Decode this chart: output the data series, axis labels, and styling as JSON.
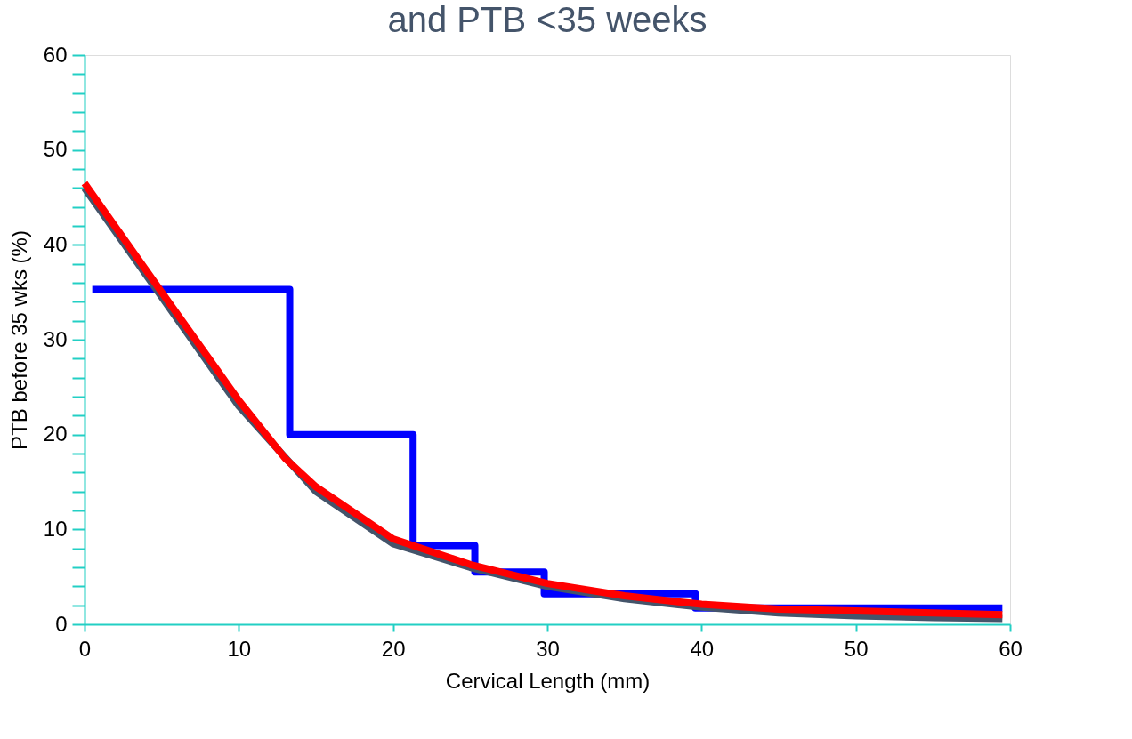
{
  "chart_data": {
    "type": "line",
    "title": "and PTB <35 weeks",
    "xlabel": "Cervical Length (mm)",
    "ylabel": "PTB before 35 wks (%)",
    "xlim": [
      0,
      60
    ],
    "xticks": [
      0,
      10,
      20,
      30,
      40,
      50,
      60
    ],
    "ylim": [
      0,
      60
    ],
    "yticks": [
      0,
      {
        "value": 2,
        "label": null
      },
      {
        "value": 4,
        "label": null
      },
      {
        "value": 6,
        "label": null
      },
      {
        "value": 8,
        "label": null
      },
      10,
      {
        "value": 12,
        "label": null
      },
      {
        "value": 14,
        "label": null
      },
      {
        "value": 16,
        "label": null
      },
      {
        "value": 18,
        "label": null
      },
      20,
      {
        "value": 22,
        "label": null
      },
      {
        "value": 24,
        "label": null
      },
      {
        "value": 26,
        "label": null
      },
      {
        "value": 28,
        "label": null
      },
      30,
      {
        "value": 32,
        "label": null
      },
      {
        "value": 34,
        "label": null
      },
      {
        "value": 36,
        "label": null
      },
      {
        "value": 38,
        "label": null
      },
      40,
      {
        "value": 42,
        "label": null
      },
      {
        "value": 44,
        "label": null
      },
      {
        "value": 46,
        "label": null
      },
      {
        "value": 48,
        "label": null
      },
      50,
      {
        "value": 52,
        "label": null
      },
      {
        "value": 54,
        "label": null
      },
      {
        "value": 56,
        "label": null
      },
      {
        "value": 58,
        "label": null
      },
      60
    ],
    "grid": false,
    "legend": false,
    "line_style": "solid",
    "marker": "none",
    "series": [
      {
        "type": "step",
        "color": "#0000ff",
        "x": [
          0.5,
          13.3,
          21.3,
          25.3,
          29.8,
          39.6,
          59.5
        ],
        "values": [
          35.3,
          20,
          8.3,
          5.5,
          3.2,
          1.7,
          1.7
        ]
      },
      {
        "type": "line",
        "color": "#44546a",
        "x": [
          0,
          5,
          10,
          15,
          20,
          25,
          30,
          35,
          40,
          45,
          50,
          55,
          59.5
        ],
        "values": [
          46,
          34.5,
          23,
          14,
          8.5,
          6,
          4,
          2.7,
          1.8,
          1.2,
          0.9,
          0.7,
          0.6
        ]
      },
      {
        "type": "line",
        "color": "#ff0000",
        "x": [
          0,
          5,
          10,
          13,
          15,
          20,
          25,
          30,
          35,
          40,
          45,
          50,
          55,
          59.5
        ],
        "values": [
          46.5,
          35,
          23.6,
          17.5,
          14.5,
          9,
          6.3,
          4.3,
          3,
          2.1,
          1.6,
          1.4,
          1.2,
          1
        ]
      }
    ]
  }
}
